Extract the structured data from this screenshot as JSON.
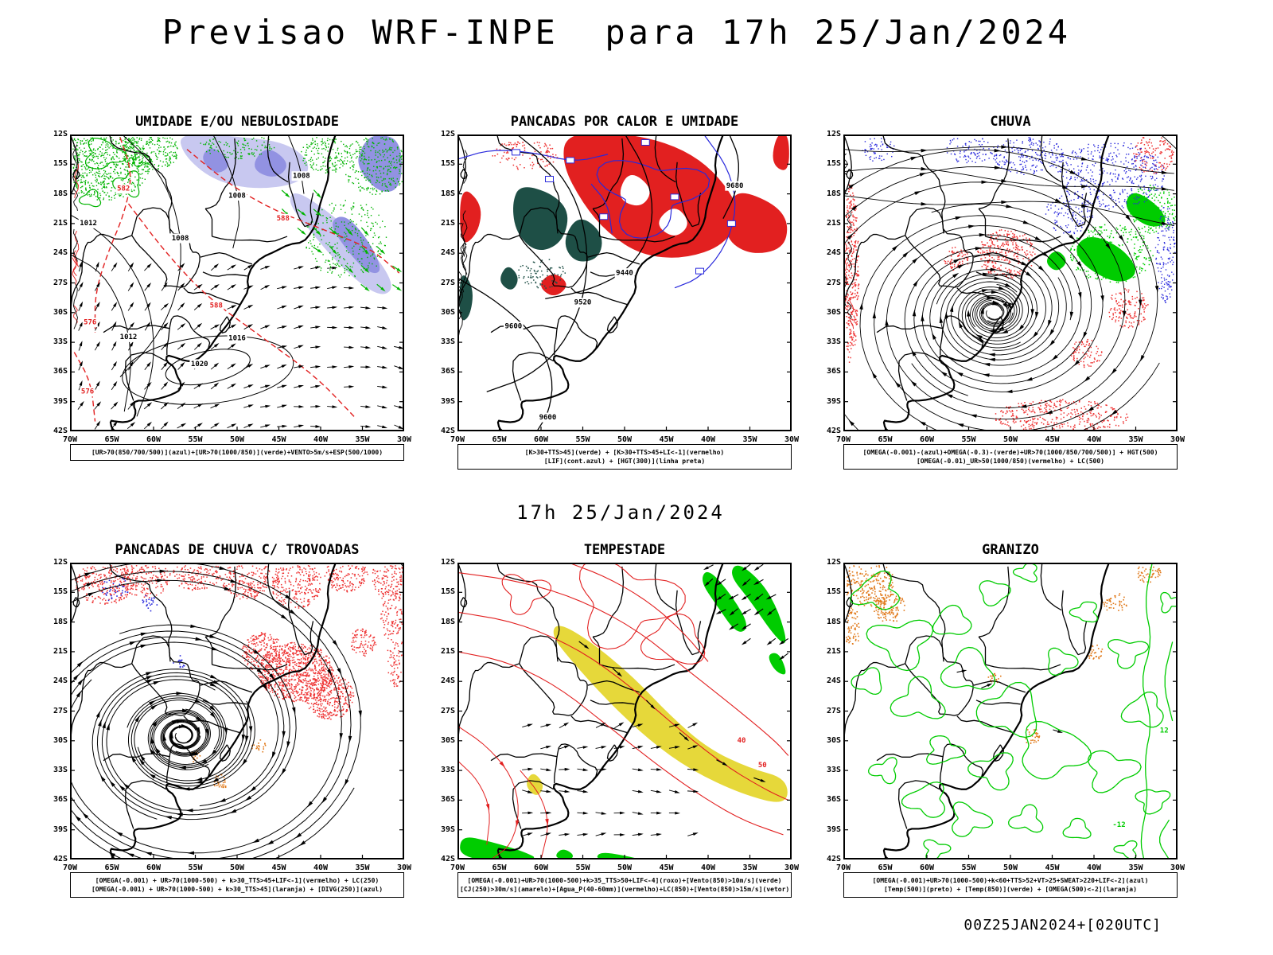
{
  "page": {
    "title": "Previsao WRF-INPE  para 17h 25/Jan/2024",
    "subtitle": "17h 25/Jan/2024",
    "footer": "00Z25JAN2024+[020UTC]"
  },
  "axes": {
    "lat_ticks": [
      "12S",
      "15S",
      "18S",
      "21S",
      "24S",
      "27S",
      "30S",
      "33S",
      "36S",
      "39S",
      "42S"
    ],
    "lon_ticks": [
      "70W",
      "65W",
      "60W",
      "55W",
      "50W",
      "45W",
      "40W",
      "35W",
      "30W"
    ]
  },
  "colors": {
    "red": "#e22020",
    "speckle_red": "#ee3030",
    "green": "#00b400",
    "bright_green": "#00cc00",
    "blue": "#2828dc",
    "lavender": "#c8c8f0",
    "slate_blue": "#9292e2",
    "dark_teal": "#1e4f46",
    "yellow": "#e6d83a",
    "orange": "#e07818",
    "black": "#000000"
  },
  "panels": [
    {
      "id": "umidade",
      "title": "UMIDADE E/OU NEBULOSIDADE",
      "captions": [
        "[UR>70(850/700/500)](azul)+[UR>70(1000/850)](verde)+VENTO>5m/s+ESP(500/1000)"
      ],
      "labels": [
        {
          "t": "1008",
          "lon": 56.8,
          "lat": 22.5,
          "c": "black"
        },
        {
          "t": "1008",
          "lon": 50.0,
          "lat": 18.2,
          "c": "black"
        },
        {
          "t": "1008",
          "lon": 42.3,
          "lat": 16.2,
          "c": "black"
        },
        {
          "t": "1012",
          "lon": 67.8,
          "lat": 21.0,
          "c": "black"
        },
        {
          "t": "1012",
          "lon": 63.0,
          "lat": 32.5,
          "c": "black"
        },
        {
          "t": "1016",
          "lon": 50.0,
          "lat": 32.6,
          "c": "black"
        },
        {
          "t": "1020",
          "lon": 54.5,
          "lat": 35.2,
          "c": "black"
        },
        {
          "t": "582",
          "lon": 63.6,
          "lat": 17.5,
          "c": "red"
        },
        {
          "t": "588",
          "lon": 44.5,
          "lat": 20.5,
          "c": "red"
        },
        {
          "t": "588",
          "lon": 52.5,
          "lat": 29.3,
          "c": "red"
        },
        {
          "t": "576",
          "lon": 67.6,
          "lat": 31.0,
          "c": "red"
        },
        {
          "t": "576",
          "lon": 67.9,
          "lat": 38.0,
          "c": "red"
        }
      ]
    },
    {
      "id": "pancadas-calor",
      "title": "PANCADAS POR CALOR E UMIDADE",
      "captions": [
        "[K>30+TTS>45](verde) + [K>30+TTS>45+LI<-1](vermelho)",
        "[LIF](cont.azul) + [HGT(300)](linha preta)"
      ],
      "labels": [
        {
          "t": "9440",
          "lon": 50.0,
          "lat": 26.0,
          "c": "black"
        },
        {
          "t": "9520",
          "lon": 55.0,
          "lat": 29.0,
          "c": "black"
        },
        {
          "t": "9600",
          "lon": 63.3,
          "lat": 31.4,
          "c": "black"
        },
        {
          "t": "9600",
          "lon": 59.2,
          "lat": 40.6,
          "c": "black"
        },
        {
          "t": "9680",
          "lon": 36.8,
          "lat": 17.2,
          "c": "black"
        }
      ]
    },
    {
      "id": "chuva",
      "title": "CHUVA",
      "captions": [
        "[OMEGA(-0.001)-(azul)+OMEGA(-0.3)-(verde)+UR>70(1000/850/700/500)] + HGT(500)",
        "[OMEGA(-0.01)_UR>50(1000/850)(vermelho) + LC(500)"
      ],
      "labels": []
    },
    {
      "id": "trovoadas",
      "title": "PANCADAS DE CHUVA C/ TROVOADAS",
      "captions": [
        "[OMEGA(-0.001) + UR>70(1000-500) + k>30_TTS>45+LIF<-1](vermelho) + LC(250)",
        "[OMEGA(-0.001) + UR>70(1000-500) + k>30_TTS>45](laranja) + [DIVG(250)](azul)"
      ],
      "labels": []
    },
    {
      "id": "tempestade",
      "title": "TEMPESTADE",
      "captions": [
        "[OMEGA(-0.001)+UR>70(1000-500)+k>35_TTS>50+LIF<-4](roxo)+[Vento(850)>10m/s](verde)",
        "[CJ(250)>30m/s](amarelo)+[Agua_P(40-60mm)](vermelho)+LC(850)+[Vento(850)>15m/s](vetor)"
      ],
      "labels": [
        {
          "t": "40",
          "lon": 36.0,
          "lat": 30.0,
          "c": "red"
        },
        {
          "t": "50",
          "lon": 33.5,
          "lat": 32.5,
          "c": "red"
        }
      ]
    },
    {
      "id": "granizo",
      "title": "GRANIZO",
      "captions": [
        "[OMEGA(-0.001)+UR>70(1000-500)+k<60+TTS>52+VT>25+SWEAT>220+LIF<-2](azul)",
        "[Temp(500)](preto) + [Temp(850)](verde) + [OMEGA(500)<-2](laranja)"
      ],
      "labels": [
        {
          "t": "-12",
          "lon": 37.0,
          "lat": 38.5,
          "c": "bright_green"
        },
        {
          "t": "12",
          "lon": 31.6,
          "lat": 29.0,
          "c": "bright_green"
        }
      ]
    }
  ]
}
